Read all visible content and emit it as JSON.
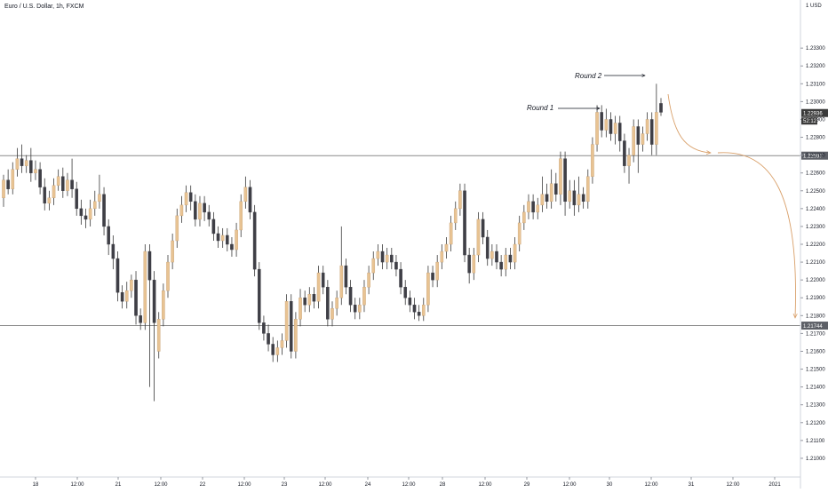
{
  "chart_data": {
    "type": "candlestick",
    "title": "Euro / U.S. Dollar, 1h, FXCM",
    "currency_unit": "1 USD",
    "ylim": [
      1.2091,
      1.235
    ],
    "y_ticks": [
      "1.23300",
      "1.23200",
      "1.23100",
      "1.23000",
      "1.22900",
      "1.22800",
      "1.22700",
      "1.22600",
      "1.22500",
      "1.22400",
      "1.22300",
      "1.22200",
      "1.22100",
      "1.22000",
      "1.21900",
      "1.21800",
      "1.21700",
      "1.21600",
      "1.21500",
      "1.21400",
      "1.21300",
      "1.21200",
      "1.21100",
      "1.21000"
    ],
    "x_ticks": [
      "18",
      "12:00",
      "21",
      "12:00",
      "22",
      "12:00",
      "23",
      "12:00",
      "24",
      "12:00",
      "28",
      "12:00",
      "29",
      "12:00",
      "30",
      "12:00",
      "31",
      "12:00",
      "2021"
    ],
    "horizontal_levels": [
      {
        "value": "1.22697",
        "role": "resistance"
      },
      {
        "value": "1.21744",
        "role": "support"
      }
    ],
    "current_price": "1.22936",
    "countdown": "52:12",
    "annotations": [
      "Round 1",
      "Round 2"
    ],
    "candles": [
      {
        "t": "1",
        "o": 1.2246,
        "c": 1.2256,
        "h": 1.2259,
        "l": 1.2241
      },
      {
        "t": "2",
        "o": 1.2256,
        "c": 1.2251,
        "h": 1.2262,
        "l": 1.2248
      },
      {
        "t": "3",
        "o": 1.2251,
        "c": 1.2262,
        "h": 1.2266,
        "l": 1.2248
      },
      {
        "t": "4",
        "o": 1.2262,
        "c": 1.2268,
        "h": 1.2274,
        "l": 1.2258
      },
      {
        "t": "5",
        "o": 1.2268,
        "c": 1.2264,
        "h": 1.2276,
        "l": 1.226
      },
      {
        "t": "6",
        "o": 1.2264,
        "c": 1.2267,
        "h": 1.227,
        "l": 1.226
      },
      {
        "t": "7",
        "o": 1.2267,
        "c": 1.226,
        "h": 1.2274,
        "l": 1.2255
      },
      {
        "t": "8",
        "o": 1.226,
        "c": 1.2262,
        "h": 1.2267,
        "l": 1.2256
      },
      {
        "t": "9",
        "o": 1.2262,
        "c": 1.2252,
        "h": 1.2266,
        "l": 1.2248
      },
      {
        "t": "10",
        "o": 1.2252,
        "c": 1.2243,
        "h": 1.2257,
        "l": 1.2239
      },
      {
        "t": "11",
        "o": 1.2243,
        "c": 1.2246,
        "h": 1.225,
        "l": 1.2239
      },
      {
        "t": "12",
        "o": 1.2246,
        "c": 1.2253,
        "h": 1.2257,
        "l": 1.2242
      },
      {
        "t": "13",
        "o": 1.2253,
        "c": 1.2258,
        "h": 1.2262,
        "l": 1.225
      },
      {
        "t": "14",
        "o": 1.2258,
        "c": 1.225,
        "h": 1.2263,
        "l": 1.2246
      },
      {
        "t": "15",
        "o": 1.225,
        "c": 1.2256,
        "h": 1.226,
        "l": 1.2247
      },
      {
        "t": "16",
        "o": 1.2256,
        "c": 1.2251,
        "h": 1.2268,
        "l": 1.2246
      },
      {
        "t": "17",
        "o": 1.2251,
        "c": 1.224,
        "h": 1.2255,
        "l": 1.2236
      },
      {
        "t": "18",
        "o": 1.224,
        "c": 1.2236,
        "h": 1.2245,
        "l": 1.2231
      },
      {
        "t": "19",
        "o": 1.2236,
        "c": 1.2234,
        "h": 1.224,
        "l": 1.2229
      },
      {
        "t": "20",
        "o": 1.2234,
        "c": 1.224,
        "h": 1.2245,
        "l": 1.223
      },
      {
        "t": "21",
        "o": 1.224,
        "c": 1.2244,
        "h": 1.225,
        "l": 1.2236
      },
      {
        "t": "22",
        "o": 1.2244,
        "c": 1.2248,
        "h": 1.2259,
        "l": 1.224
      },
      {
        "t": "23",
        "o": 1.2248,
        "c": 1.223,
        "h": 1.2252,
        "l": 1.2225
      },
      {
        "t": "24",
        "o": 1.223,
        "c": 1.222,
        "h": 1.2234,
        "l": 1.2214
      },
      {
        "t": "25",
        "o": 1.222,
        "c": 1.2212,
        "h": 1.2225,
        "l": 1.2206
      },
      {
        "t": "26",
        "o": 1.2212,
        "c": 1.2193,
        "h": 1.2216,
        "l": 1.2188
      },
      {
        "t": "27",
        "o": 1.2193,
        "c": 1.2188,
        "h": 1.2197,
        "l": 1.2184
      },
      {
        "t": "28",
        "o": 1.2188,
        "c": 1.2194,
        "h": 1.2199,
        "l": 1.2184
      },
      {
        "t": "29",
        "o": 1.2194,
        "c": 1.22,
        "h": 1.2203,
        "l": 1.219
      },
      {
        "t": "30",
        "o": 1.22,
        "c": 1.218,
        "h": 1.2205,
        "l": 1.2175
      },
      {
        "t": "31",
        "o": 1.218,
        "c": 1.2176,
        "h": 1.2184,
        "l": 1.2172
      },
      {
        "t": "32",
        "o": 1.2176,
        "c": 1.2216,
        "h": 1.222,
        "l": 1.2172
      },
      {
        "t": "33",
        "o": 1.2216,
        "c": 1.22,
        "h": 1.222,
        "l": 1.214
      },
      {
        "t": "34",
        "o": 1.22,
        "c": 1.2176,
        "h": 1.2205,
        "l": 1.2132
      },
      {
        "t": "35",
        "o": 1.216,
        "c": 1.2178,
        "h": 1.2182,
        "l": 1.2156
      },
      {
        "t": "36",
        "o": 1.2178,
        "c": 1.2194,
        "h": 1.2198,
        "l": 1.2174
      },
      {
        "t": "37",
        "o": 1.2194,
        "c": 1.221,
        "h": 1.2214,
        "l": 1.219
      },
      {
        "t": "38",
        "o": 1.221,
        "c": 1.2222,
        "h": 1.2226,
        "l": 1.2206
      },
      {
        "t": "39",
        "o": 1.2222,
        "c": 1.2236,
        "h": 1.224,
        "l": 1.2218
      },
      {
        "t": "40",
        "o": 1.2236,
        "c": 1.2242,
        "h": 1.2247,
        "l": 1.2232
      },
      {
        "t": "41",
        "o": 1.2242,
        "c": 1.2249,
        "h": 1.2253,
        "l": 1.2238
      },
      {
        "t": "42",
        "o": 1.2249,
        "c": 1.2244,
        "h": 1.2253,
        "l": 1.2239
      },
      {
        "t": "43",
        "o": 1.2244,
        "c": 1.2234,
        "h": 1.2248,
        "l": 1.223
      },
      {
        "t": "44",
        "o": 1.2234,
        "c": 1.2243,
        "h": 1.2247,
        "l": 1.223
      },
      {
        "t": "45",
        "o": 1.2243,
        "c": 1.2238,
        "h": 1.2247,
        "l": 1.2233
      },
      {
        "t": "46",
        "o": 1.2238,
        "c": 1.2234,
        "h": 1.2242,
        "l": 1.223
      },
      {
        "t": "47",
        "o": 1.2234,
        "c": 1.2226,
        "h": 1.2238,
        "l": 1.2222
      },
      {
        "t": "48",
        "o": 1.2226,
        "c": 1.2222,
        "h": 1.223,
        "l": 1.2218
      },
      {
        "t": "49",
        "o": 1.2222,
        "c": 1.2225,
        "h": 1.2229,
        "l": 1.2218
      },
      {
        "t": "50",
        "o": 1.2225,
        "c": 1.222,
        "h": 1.2229,
        "l": 1.2216
      },
      {
        "t": "51",
        "o": 1.222,
        "c": 1.2217,
        "h": 1.2224,
        "l": 1.2213
      },
      {
        "t": "52",
        "o": 1.2217,
        "c": 1.2228,
        "h": 1.2232,
        "l": 1.2213
      },
      {
        "t": "53",
        "o": 1.2228,
        "c": 1.2244,
        "h": 1.2248,
        "l": 1.2224
      },
      {
        "t": "54",
        "o": 1.2244,
        "c": 1.2252,
        "h": 1.2258,
        "l": 1.224
      },
      {
        "t": "55",
        "o": 1.2252,
        "c": 1.2238,
        "h": 1.2256,
        "l": 1.2234
      },
      {
        "t": "56",
        "o": 1.2238,
        "c": 1.2206,
        "h": 1.2242,
        "l": 1.2202
      },
      {
        "t": "57",
        "o": 1.2206,
        "c": 1.2176,
        "h": 1.221,
        "l": 1.2172
      },
      {
        "t": "58",
        "o": 1.2176,
        "c": 1.217,
        "h": 1.218,
        "l": 1.2166
      },
      {
        "t": "59",
        "o": 1.217,
        "c": 1.2164,
        "h": 1.2175,
        "l": 1.216
      },
      {
        "t": "60",
        "o": 1.2164,
        "c": 1.2158,
        "h": 1.2168,
        "l": 1.2154
      },
      {
        "t": "61",
        "o": 1.2158,
        "c": 1.2162,
        "h": 1.2166,
        "l": 1.2154
      },
      {
        "t": "62",
        "o": 1.2162,
        "c": 1.2166,
        "h": 1.217,
        "l": 1.2158
      },
      {
        "t": "63",
        "o": 1.2166,
        "c": 1.2188,
        "h": 1.2192,
        "l": 1.2162
      },
      {
        "t": "64",
        "o": 1.2188,
        "c": 1.216,
        "h": 1.2192,
        "l": 1.2156
      },
      {
        "t": "65",
        "o": 1.216,
        "c": 1.2178,
        "h": 1.2182,
        "l": 1.2156
      },
      {
        "t": "66",
        "o": 1.2178,
        "c": 1.219,
        "h": 1.2195,
        "l": 1.2174
      },
      {
        "t": "67",
        "o": 1.219,
        "c": 1.2186,
        "h": 1.2194,
        "l": 1.2182
      },
      {
        "t": "68",
        "o": 1.2186,
        "c": 1.2192,
        "h": 1.2196,
        "l": 1.2182
      },
      {
        "t": "69",
        "o": 1.2192,
        "c": 1.2188,
        "h": 1.2196,
        "l": 1.2184
      },
      {
        "t": "70",
        "o": 1.2188,
        "c": 1.2204,
        "h": 1.2208,
        "l": 1.2184
      },
      {
        "t": "71",
        "o": 1.2204,
        "c": 1.2196,
        "h": 1.2208,
        "l": 1.2192
      },
      {
        "t": "72",
        "o": 1.2196,
        "c": 1.2178,
        "h": 1.22,
        "l": 1.2174
      },
      {
        "t": "73",
        "o": 1.2178,
        "c": 1.2184,
        "h": 1.2188,
        "l": 1.2174
      },
      {
        "t": "74",
        "o": 1.2184,
        "c": 1.219,
        "h": 1.2194,
        "l": 1.218
      },
      {
        "t": "75",
        "o": 1.219,
        "c": 1.2208,
        "h": 1.223,
        "l": 1.2186
      },
      {
        "t": "76",
        "o": 1.2208,
        "c": 1.2196,
        "h": 1.2212,
        "l": 1.2192
      },
      {
        "t": "77",
        "o": 1.2196,
        "c": 1.2186,
        "h": 1.22,
        "l": 1.2182
      },
      {
        "t": "78",
        "o": 1.2186,
        "c": 1.2182,
        "h": 1.219,
        "l": 1.2178
      },
      {
        "t": "79",
        "o": 1.2182,
        "c": 1.2186,
        "h": 1.219,
        "l": 1.2178
      },
      {
        "t": "80",
        "o": 1.2186,
        "c": 1.2196,
        "h": 1.22,
        "l": 1.2182
      },
      {
        "t": "81",
        "o": 1.2196,
        "c": 1.2204,
        "h": 1.2208,
        "l": 1.2192
      },
      {
        "t": "82",
        "o": 1.2204,
        "c": 1.2212,
        "h": 1.2216,
        "l": 1.22
      },
      {
        "t": "83",
        "o": 1.2212,
        "c": 1.2216,
        "h": 1.222,
        "l": 1.2208
      },
      {
        "t": "84",
        "o": 1.2216,
        "c": 1.221,
        "h": 1.222,
        "l": 1.2206
      },
      {
        "t": "85",
        "o": 1.221,
        "c": 1.2214,
        "h": 1.2218,
        "l": 1.2206
      },
      {
        "t": "86",
        "o": 1.2214,
        "c": 1.221,
        "h": 1.2218,
        "l": 1.2206
      },
      {
        "t": "87",
        "o": 1.221,
        "c": 1.2206,
        "h": 1.2214,
        "l": 1.2202
      },
      {
        "t": "88",
        "o": 1.2206,
        "c": 1.2196,
        "h": 1.221,
        "l": 1.2192
      },
      {
        "t": "89",
        "o": 1.2196,
        "c": 1.219,
        "h": 1.22,
        "l": 1.2186
      },
      {
        "t": "90",
        "o": 1.219,
        "c": 1.2186,
        "h": 1.2194,
        "l": 1.2182
      },
      {
        "t": "91",
        "o": 1.2186,
        "c": 1.2182,
        "h": 1.219,
        "l": 1.2178
      },
      {
        "t": "92",
        "o": 1.2182,
        "c": 1.218,
        "h": 1.2186,
        "l": 1.2177
      },
      {
        "t": "93",
        "o": 1.218,
        "c": 1.2186,
        "h": 1.219,
        "l": 1.2177
      },
      {
        "t": "94",
        "o": 1.2186,
        "c": 1.2204,
        "h": 1.2208,
        "l": 1.2182
      },
      {
        "t": "95",
        "o": 1.2204,
        "c": 1.22,
        "h": 1.2208,
        "l": 1.2196
      },
      {
        "t": "96",
        "o": 1.22,
        "c": 1.221,
        "h": 1.2214,
        "l": 1.2196
      },
      {
        "t": "97",
        "o": 1.221,
        "c": 1.2216,
        "h": 1.222,
        "l": 1.2206
      },
      {
        "t": "98",
        "o": 1.2216,
        "c": 1.222,
        "h": 1.2224,
        "l": 1.2212
      },
      {
        "t": "99",
        "o": 1.222,
        "c": 1.2232,
        "h": 1.2236,
        "l": 1.2216
      },
      {
        "t": "100",
        "o": 1.2232,
        "c": 1.224,
        "h": 1.2244,
        "l": 1.2228
      },
      {
        "t": "101",
        "o": 1.224,
        "c": 1.225,
        "h": 1.2254,
        "l": 1.2236
      },
      {
        "t": "102",
        "o": 1.225,
        "c": 1.2214,
        "h": 1.2254,
        "l": 1.221
      },
      {
        "t": "103",
        "o": 1.2214,
        "c": 1.2204,
        "h": 1.2218,
        "l": 1.2198
      },
      {
        "t": "104",
        "o": 1.2204,
        "c": 1.2214,
        "h": 1.2218,
        "l": 1.22
      },
      {
        "t": "105",
        "o": 1.2214,
        "c": 1.2234,
        "h": 1.2238,
        "l": 1.221
      },
      {
        "t": "106",
        "o": 1.2234,
        "c": 1.2224,
        "h": 1.2238,
        "l": 1.222
      },
      {
        "t": "107",
        "o": 1.2224,
        "c": 1.2212,
        "h": 1.2228,
        "l": 1.2208
      },
      {
        "t": "108",
        "o": 1.2212,
        "c": 1.2216,
        "h": 1.222,
        "l": 1.2208
      },
      {
        "t": "109",
        "o": 1.2216,
        "c": 1.221,
        "h": 1.222,
        "l": 1.2206
      },
      {
        "t": "110",
        "o": 1.221,
        "c": 1.2206,
        "h": 1.2214,
        "l": 1.2202
      },
      {
        "t": "111",
        "o": 1.2206,
        "c": 1.2214,
        "h": 1.2218,
        "l": 1.2202
      },
      {
        "t": "112",
        "o": 1.2214,
        "c": 1.221,
        "h": 1.2218,
        "l": 1.2206
      },
      {
        "t": "113",
        "o": 1.221,
        "c": 1.222,
        "h": 1.2224,
        "l": 1.2206
      },
      {
        "t": "114",
        "o": 1.222,
        "c": 1.2232,
        "h": 1.2236,
        "l": 1.2216
      },
      {
        "t": "115",
        "o": 1.2232,
        "c": 1.2238,
        "h": 1.2242,
        "l": 1.2228
      },
      {
        "t": "116",
        "o": 1.2238,
        "c": 1.2244,
        "h": 1.2248,
        "l": 1.2234
      },
      {
        "t": "117",
        "o": 1.2244,
        "c": 1.2238,
        "h": 1.2248,
        "l": 1.2234
      },
      {
        "t": "118",
        "o": 1.2238,
        "c": 1.2242,
        "h": 1.2246,
        "l": 1.2234
      },
      {
        "t": "119",
        "o": 1.2242,
        "c": 1.2248,
        "h": 1.2258,
        "l": 1.2238
      },
      {
        "t": "120",
        "o": 1.2248,
        "c": 1.2244,
        "h": 1.2254,
        "l": 1.224
      },
      {
        "t": "121",
        "o": 1.2244,
        "c": 1.2254,
        "h": 1.2262,
        "l": 1.224
      },
      {
        "t": "122",
        "o": 1.2254,
        "c": 1.2248,
        "h": 1.226,
        "l": 1.2244
      },
      {
        "t": "123",
        "o": 1.2248,
        "c": 1.2268,
        "h": 1.2272,
        "l": 1.2242
      },
      {
        "t": "124",
        "o": 1.2268,
        "c": 1.2244,
        "h": 1.2272,
        "l": 1.2236
      },
      {
        "t": "125",
        "o": 1.2244,
        "c": 1.225,
        "h": 1.2256,
        "l": 1.224
      },
      {
        "t": "126",
        "o": 1.225,
        "c": 1.2242,
        "h": 1.2256,
        "l": 1.2236
      },
      {
        "t": "127",
        "o": 1.2242,
        "c": 1.2248,
        "h": 1.2258,
        "l": 1.2238
      },
      {
        "t": "128",
        "o": 1.2248,
        "c": 1.2244,
        "h": 1.2252,
        "l": 1.224
      },
      {
        "t": "129",
        "o": 1.2244,
        "c": 1.2258,
        "h": 1.2262,
        "l": 1.224
      },
      {
        "t": "130",
        "o": 1.2258,
        "c": 1.2276,
        "h": 1.228,
        "l": 1.2254
      },
      {
        "t": "131",
        "o": 1.2276,
        "c": 1.2294,
        "h": 1.2298,
        "l": 1.2272
      },
      {
        "t": "132",
        "o": 1.2294,
        "c": 1.2284,
        "h": 1.2298,
        "l": 1.228
      },
      {
        "t": "133",
        "o": 1.2284,
        "c": 1.229,
        "h": 1.2296,
        "l": 1.228
      },
      {
        "t": "134",
        "o": 1.229,
        "c": 1.2282,
        "h": 1.2294,
        "l": 1.2278
      },
      {
        "t": "135",
        "o": 1.2282,
        "c": 1.2288,
        "h": 1.2292,
        "l": 1.2276
      },
      {
        "t": "136",
        "o": 1.2288,
        "c": 1.2278,
        "h": 1.2292,
        "l": 1.2272
      },
      {
        "t": "137",
        "o": 1.2278,
        "c": 1.2264,
        "h": 1.2282,
        "l": 1.226
      },
      {
        "t": "138",
        "o": 1.2264,
        "c": 1.227,
        "h": 1.2274,
        "l": 1.2254
      },
      {
        "t": "139",
        "o": 1.227,
        "c": 1.2286,
        "h": 1.229,
        "l": 1.2266
      },
      {
        "t": "140",
        "o": 1.2286,
        "c": 1.2276,
        "h": 1.229,
        "l": 1.226
      },
      {
        "t": "141",
        "o": 1.2276,
        "c": 1.2282,
        "h": 1.2286,
        "l": 1.2272
      },
      {
        "t": "142",
        "o": 1.2282,
        "c": 1.229,
        "h": 1.2294,
        "l": 1.2278
      },
      {
        "t": "143",
        "o": 1.229,
        "c": 1.2276,
        "h": 1.2294,
        "l": 1.227
      },
      {
        "t": "144",
        "o": 1.2276,
        "c": 1.2294,
        "h": 1.231,
        "l": 1.227
      },
      {
        "t": "145",
        "o": 1.2299,
        "c": 1.2294,
        "h": 1.2302,
        "l": 1.2292
      }
    ]
  },
  "y_axis_label": "1 USD",
  "title_text": "Euro / U.S. Dollar, 1h, FXCM",
  "labels": {
    "round1": "Round 1",
    "round2": "Round 2",
    "resistance_value": "1.22697",
    "support_value": "1.21744",
    "price_value": "1.22936",
    "countdown": "52:12"
  },
  "colors": {
    "bull": "#e8c393",
    "bear": "#3f3f46",
    "wick": "#3a3a3a",
    "level_line": "#8a8a8a",
    "projection": "#d9a06a",
    "axis_text": "#131722",
    "price_tag_bg": "#3a3a3a"
  }
}
